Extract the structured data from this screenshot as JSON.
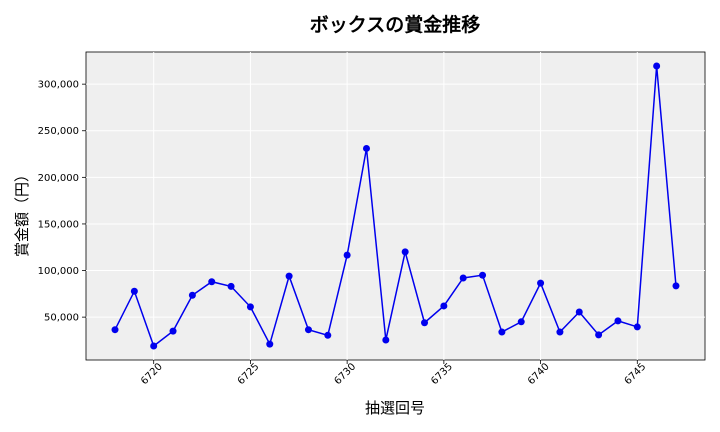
{
  "chart_data": {
    "type": "line",
    "title": "ボックスの賞金推移",
    "xlabel": "抽選回号",
    "ylabel": "賞金額（円）",
    "x": [
      6718,
      6719,
      6720,
      6721,
      6722,
      6723,
      6724,
      6725,
      6726,
      6727,
      6728,
      6729,
      6730,
      6731,
      6732,
      6733,
      6734,
      6735,
      6736,
      6737,
      6738,
      6739,
      6740,
      6741,
      6742,
      6743,
      6744,
      6745,
      6746,
      6747
    ],
    "series": [
      {
        "values": [
          36500,
          77800,
          19000,
          35000,
          73500,
          88000,
          83000,
          61000,
          21000,
          94000,
          36500,
          30500,
          116500,
          231000,
          25500,
          120000,
          44000,
          62000,
          92000,
          95000,
          34000,
          45000,
          86500,
          34000,
          55500,
          31000,
          46000,
          39500,
          319500,
          83500
        ]
      }
    ],
    "xticks": [
      6720,
      6725,
      6730,
      6735,
      6740,
      6745
    ],
    "xtick_labels": [
      "6720",
      "6725",
      "6730",
      "6735",
      "6740",
      "6745"
    ],
    "yticks": [
      50000,
      100000,
      150000,
      200000,
      250000,
      300000
    ],
    "ytick_labels": [
      "50,000",
      "100,000",
      "150,000",
      "200,000",
      "250,000",
      "300,000"
    ],
    "xlim": [
      6716.5,
      6748.5
    ],
    "ylim": [
      4000,
      334500
    ],
    "grid": true,
    "colors": {
      "line": "#0000ee",
      "marker": "#0000ee",
      "plot_bg": "#efefef",
      "grid": "#ffffff"
    }
  }
}
